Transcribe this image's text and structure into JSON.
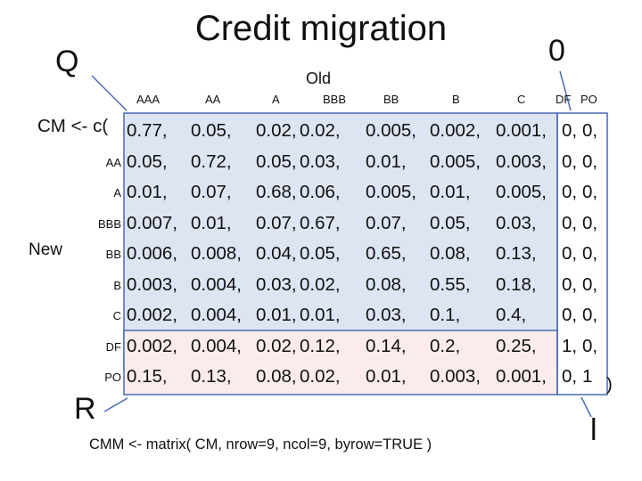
{
  "title": "Credit migration",
  "corners": {
    "top_left": "Q",
    "top_right": "0",
    "bottom_left": "R",
    "bottom_right": "l"
  },
  "old_label": "Old",
  "new_label": "New",
  "columns": [
    "AAA",
    "AA",
    "A",
    "BBB",
    "BB",
    "B",
    "C",
    "DF",
    "PO"
  ],
  "row_labels": [
    "",
    "AA",
    "A",
    "BBB",
    "BB",
    "B",
    "C",
    "DF",
    "PO"
  ],
  "code_prefix": "CM <- c(",
  "closing": ")",
  "rows": [
    [
      "0.77,",
      "0.05,",
      "0.02,",
      "0.02,",
      "0.005,",
      "0.002,",
      "0.001,",
      "0,",
      "0,"
    ],
    [
      "0.05,",
      "0.72,",
      "0.05,",
      "0.03,",
      "0.01,",
      "0.005,",
      "0.003,",
      "0,",
      "0,"
    ],
    [
      "0.01,",
      "0.07,",
      "0.68,",
      "0.06,",
      "0.005,",
      "0.01,",
      "0.005,",
      "0,",
      "0,"
    ],
    [
      "0.007,",
      "0.01,",
      "0.07,",
      "0.67,",
      "0.07,",
      "0.05,",
      "0.03,",
      "0,",
      "0,"
    ],
    [
      "0.006,",
      "0.008,",
      "0.04,",
      "0.05,",
      "0.65,",
      "0.08,",
      "0.13,",
      "0,",
      "0,"
    ],
    [
      "0.003,",
      "0.004,",
      "0.03,",
      "0.02,",
      "0.08,",
      "0.55,",
      "0.18,",
      "0,",
      "0,"
    ],
    [
      "0.002,",
      "0.004,",
      "0.01,",
      "0.01,",
      "0.03,",
      "0.1,",
      "0.4,",
      "0,",
      "0,"
    ],
    [
      "0.002,",
      "0.004,",
      "0.02,",
      "0.12,",
      "0.14,",
      "0.2,",
      "0.25,",
      "1,",
      "0,"
    ],
    [
      "0.15,",
      "0.13,",
      "0.08,",
      "0.02,",
      "0.01,",
      "0.003,",
      "0.001,",
      "0,",
      "1"
    ]
  ],
  "footer": "CMM <- matrix( CM, nrow=9, ncol=9, byrow=TRUE )",
  "colors": {
    "Q_box": "#dde4f2",
    "R_box": "#fbeceb",
    "border": "#4a69b5",
    "arrow": "#4a69b5"
  }
}
